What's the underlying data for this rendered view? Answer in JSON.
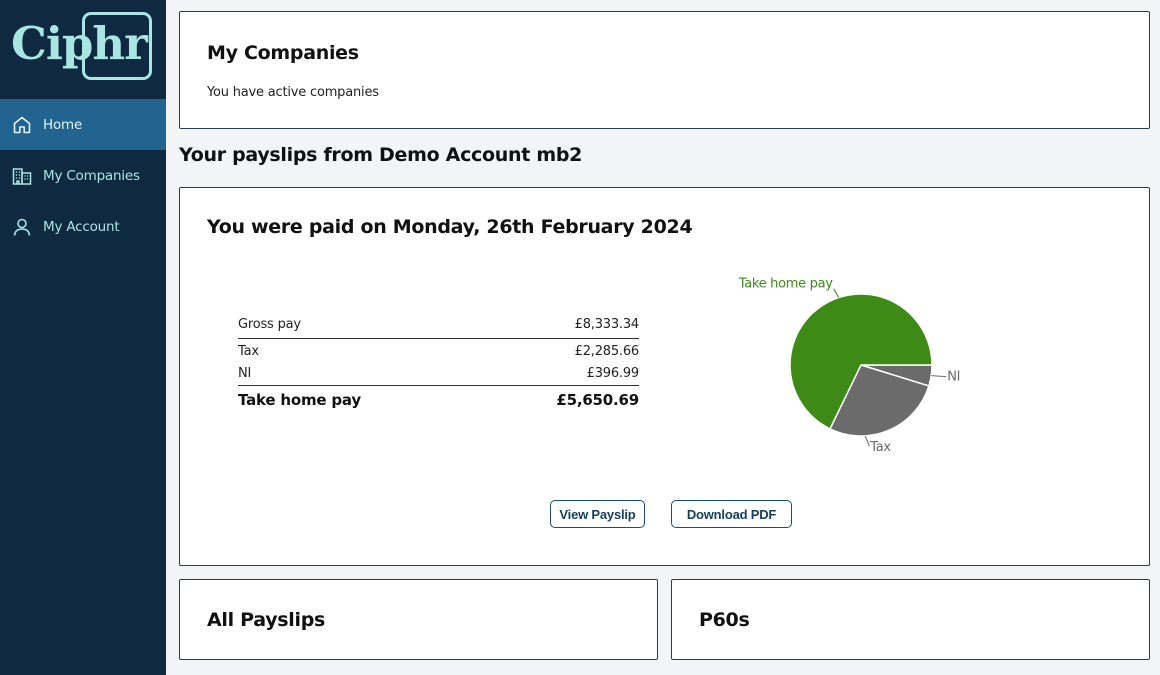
{
  "brand": {
    "logo_text": "Ciphr"
  },
  "sidebar": {
    "items": [
      {
        "label": "Home",
        "icon": "home-icon",
        "active": true
      },
      {
        "label": "My Companies",
        "icon": "buildings-icon",
        "active": false
      },
      {
        "label": "My Account",
        "icon": "user-icon",
        "active": false
      }
    ]
  },
  "companies_card": {
    "title": "My Companies",
    "subtitle": "You have active companies"
  },
  "payslips_section": {
    "heading": "Your payslips from Demo Account mb2"
  },
  "payslip_card": {
    "title": "You were paid on Monday, 26th February 2024",
    "rows": {
      "gross": {
        "label": "Gross pay",
        "value": "£8,333.34"
      },
      "tax": {
        "label": "Tax",
        "value": "£2,285.66"
      },
      "ni": {
        "label": "NI",
        "value": "£396.99"
      },
      "total": {
        "label": "Take home pay",
        "value": "£5,650.69"
      }
    },
    "view_button": "View Payslip",
    "download_button": "Download PDF"
  },
  "chart_data": {
    "type": "pie",
    "slices": [
      {
        "label": "Take home pay",
        "value": 5650.69,
        "color": "#3d8a17"
      },
      {
        "label": "Tax",
        "value": 2285.66,
        "color": "#6b6b6b"
      },
      {
        "label": "NI",
        "value": 396.99,
        "color": "#6b6b6b"
      }
    ],
    "label_colors": {
      "Take home pay": "#3d8a17",
      "Tax": "#6b6b6b",
      "NI": "#6b6b6b"
    }
  },
  "all_payslips_card": {
    "title": "All Payslips"
  },
  "p60s_card": {
    "title": "P60s"
  }
}
